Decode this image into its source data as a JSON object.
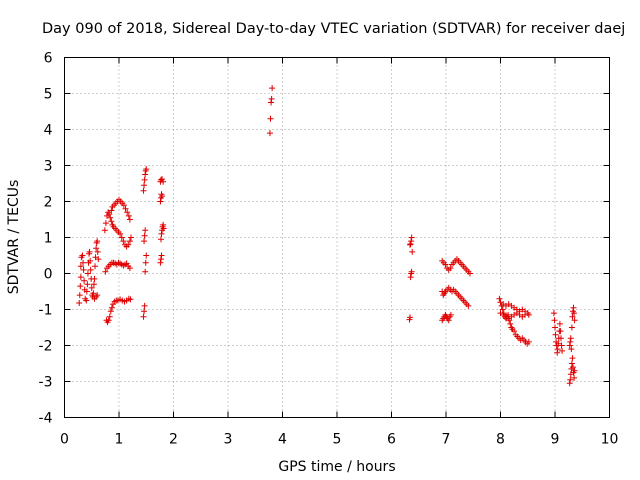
{
  "chart_data": {
    "type": "scatter",
    "title": "Day 090 of 2018, Sidereal Day-to-day VTEC variation (SDTVAR) for receiver daej",
    "xlabel": "GPS time / hours",
    "ylabel": "SDTVAR / TECUs",
    "xlim": [
      0,
      10
    ],
    "ylim": [
      -4,
      6
    ],
    "xticks": [
      "0",
      "1",
      "2",
      "3",
      "4",
      "5",
      "6",
      "7",
      "8",
      "9",
      "10"
    ],
    "yticks": [
      "-4",
      "-3",
      "-2",
      "-1",
      "0",
      "1",
      "2",
      "3",
      "4",
      "5",
      "6"
    ],
    "grid": true,
    "marker": "+",
    "color": "#e00000",
    "series": [
      {
        "name": "SDTVAR",
        "points": [
          [
            0.27,
            -0.82
          ],
          [
            0.28,
            -0.6
          ],
          [
            0.29,
            -0.35
          ],
          [
            0.3,
            -0.1
          ],
          [
            0.3,
            0.2
          ],
          [
            0.31,
            0.45
          ],
          [
            0.33,
            0.5
          ],
          [
            0.34,
            0.3
          ],
          [
            0.35,
            0.1
          ],
          [
            0.36,
            -0.2
          ],
          [
            0.37,
            -0.45
          ],
          [
            0.38,
            -0.7
          ],
          [
            0.4,
            -0.75
          ],
          [
            0.41,
            -0.5
          ],
          [
            0.42,
            -0.3
          ],
          [
            0.43,
            0.0
          ],
          [
            0.44,
            0.3
          ],
          [
            0.45,
            0.55
          ],
          [
            0.46,
            0.6
          ],
          [
            0.47,
            0.35
          ],
          [
            0.48,
            0.1
          ],
          [
            0.49,
            -0.15
          ],
          [
            0.5,
            -0.4
          ],
          [
            0.51,
            -0.6
          ],
          [
            0.52,
            -0.65
          ],
          [
            0.53,
            -0.55
          ],
          [
            0.54,
            -0.3
          ],
          [
            0.55,
            -0.15
          ],
          [
            0.56,
            0.2
          ],
          [
            0.57,
            0.45
          ],
          [
            0.58,
            0.7
          ],
          [
            0.59,
            0.85
          ],
          [
            0.6,
            0.9
          ],
          [
            0.61,
            0.6
          ],
          [
            0.62,
            0.4
          ],
          [
            0.55,
            -0.7
          ],
          [
            0.58,
            -0.65
          ],
          [
            0.6,
            -0.6
          ],
          [
            0.77,
            -1.3
          ],
          [
            0.79,
            -1.35
          ],
          [
            0.81,
            -1.3
          ],
          [
            0.83,
            -1.2
          ],
          [
            0.85,
            -1.05
          ],
          [
            0.87,
            -0.95
          ],
          [
            0.89,
            -0.85
          ],
          [
            0.92,
            -0.78
          ],
          [
            0.95,
            -0.75
          ],
          [
            0.98,
            -0.75
          ],
          [
            1.02,
            -0.72
          ],
          [
            1.06,
            -0.75
          ],
          [
            1.1,
            -0.78
          ],
          [
            1.14,
            -0.75
          ],
          [
            1.18,
            -0.7
          ],
          [
            1.21,
            -0.72
          ],
          [
            0.75,
            0.05
          ],
          [
            0.78,
            0.15
          ],
          [
            0.81,
            0.2
          ],
          [
            0.84,
            0.25
          ],
          [
            0.87,
            0.3
          ],
          [
            0.9,
            0.3
          ],
          [
            0.93,
            0.28
          ],
          [
            0.96,
            0.25
          ],
          [
            0.99,
            0.3
          ],
          [
            1.02,
            0.28
          ],
          [
            1.05,
            0.25
          ],
          [
            1.08,
            0.22
          ],
          [
            1.11,
            0.25
          ],
          [
            1.14,
            0.28
          ],
          [
            1.17,
            0.2
          ],
          [
            1.2,
            0.15
          ],
          [
            0.74,
            1.2
          ],
          [
            0.76,
            1.4
          ],
          [
            0.78,
            1.6
          ],
          [
            0.8,
            1.7
          ],
          [
            0.82,
            1.65
          ],
          [
            0.84,
            1.55
          ],
          [
            0.86,
            1.45
          ],
          [
            0.88,
            1.35
          ],
          [
            0.9,
            1.3
          ],
          [
            0.93,
            1.25
          ],
          [
            0.96,
            1.2
          ],
          [
            0.99,
            1.15
          ],
          [
            1.02,
            1.1
          ],
          [
            1.05,
            1.0
          ],
          [
            1.08,
            0.9
          ],
          [
            1.11,
            0.8
          ],
          [
            1.14,
            0.75
          ],
          [
            1.17,
            0.8
          ],
          [
            1.2,
            0.9
          ],
          [
            1.22,
            1.0
          ],
          [
            0.86,
            1.75
          ],
          [
            0.88,
            1.85
          ],
          [
            0.91,
            1.9
          ],
          [
            0.94,
            1.95
          ],
          [
            0.97,
            2.0
          ],
          [
            1.0,
            2.05
          ],
          [
            1.03,
            2.0
          ],
          [
            1.06,
            1.95
          ],
          [
            1.09,
            1.9
          ],
          [
            1.12,
            1.8
          ],
          [
            1.15,
            1.7
          ],
          [
            1.18,
            1.6
          ],
          [
            1.2,
            1.5
          ],
          [
            1.45,
            -1.2
          ],
          [
            1.46,
            -1.05
          ],
          [
            1.47,
            -0.9
          ],
          [
            1.48,
            0.05
          ],
          [
            1.49,
            0.3
          ],
          [
            1.5,
            0.5
          ],
          [
            1.46,
            0.9
          ],
          [
            1.47,
            1.05
          ],
          [
            1.48,
            1.2
          ],
          [
            1.45,
            2.3
          ],
          [
            1.46,
            2.45
          ],
          [
            1.47,
            2.6
          ],
          [
            1.48,
            2.75
          ],
          [
            1.49,
            2.85
          ],
          [
            1.5,
            2.9
          ],
          [
            1.76,
            0.3
          ],
          [
            1.77,
            0.4
          ],
          [
            1.78,
            0.5
          ],
          [
            1.77,
            0.95
          ],
          [
            1.78,
            1.1
          ],
          [
            1.79,
            1.2
          ],
          [
            1.8,
            1.3
          ],
          [
            1.81,
            1.35
          ],
          [
            1.82,
            1.25
          ],
          [
            1.76,
            2.0
          ],
          [
            1.77,
            2.1
          ],
          [
            1.78,
            2.2
          ],
          [
            1.79,
            2.15
          ],
          [
            1.76,
            2.55
          ],
          [
            1.77,
            2.6
          ],
          [
            1.79,
            2.62
          ],
          [
            1.81,
            2.55
          ],
          [
            3.77,
            3.9
          ],
          [
            3.78,
            4.3
          ],
          [
            3.79,
            4.75
          ],
          [
            3.8,
            4.85
          ],
          [
            3.81,
            5.15
          ],
          [
            6.33,
            -1.28
          ],
          [
            6.34,
            -1.22
          ],
          [
            6.35,
            -0.1
          ],
          [
            6.36,
            0.0
          ],
          [
            6.37,
            0.05
          ],
          [
            6.34,
            0.8
          ],
          [
            6.35,
            0.82
          ],
          [
            6.36,
            0.9
          ],
          [
            6.37,
            1.0
          ],
          [
            6.38,
            0.6
          ],
          [
            6.93,
            -1.3
          ],
          [
            6.95,
            -1.25
          ],
          [
            6.97,
            -1.2
          ],
          [
            6.99,
            -1.15
          ],
          [
            7.01,
            -1.2
          ],
          [
            7.03,
            -1.25
          ],
          [
            7.05,
            -1.3
          ],
          [
            7.07,
            -1.2
          ],
          [
            7.09,
            -1.15
          ],
          [
            6.93,
            -0.5
          ],
          [
            6.95,
            -0.6
          ],
          [
            6.97,
            -0.55
          ],
          [
            6.99,
            -0.5
          ],
          [
            7.02,
            -0.45
          ],
          [
            7.05,
            -0.4
          ],
          [
            7.08,
            -0.45
          ],
          [
            7.11,
            -0.5
          ],
          [
            7.14,
            -0.45
          ],
          [
            7.17,
            -0.5
          ],
          [
            7.2,
            -0.55
          ],
          [
            7.23,
            -0.6
          ],
          [
            7.26,
            -0.65
          ],
          [
            7.29,
            -0.7
          ],
          [
            7.32,
            -0.75
          ],
          [
            7.35,
            -0.8
          ],
          [
            7.38,
            -0.85
          ],
          [
            7.41,
            -0.9
          ],
          [
            6.93,
            0.35
          ],
          [
            6.96,
            0.3
          ],
          [
            6.99,
            0.25
          ],
          [
            7.02,
            0.15
          ],
          [
            7.05,
            0.1
          ],
          [
            7.08,
            0.15
          ],
          [
            7.11,
            0.25
          ],
          [
            7.14,
            0.3
          ],
          [
            7.17,
            0.35
          ],
          [
            7.2,
            0.4
          ],
          [
            7.23,
            0.35
          ],
          [
            7.26,
            0.3
          ],
          [
            7.29,
            0.25
          ],
          [
            7.32,
            0.2
          ],
          [
            7.35,
            0.15
          ],
          [
            7.38,
            0.1
          ],
          [
            7.41,
            0.05
          ],
          [
            7.44,
            0.0
          ],
          [
            7.98,
            -0.7
          ],
          [
            8.0,
            -0.8
          ],
          [
            8.02,
            -0.9
          ],
          [
            8.04,
            -1.0
          ],
          [
            8.06,
            -1.1
          ],
          [
            8.08,
            -1.2
          ],
          [
            8.1,
            -1.25
          ],
          [
            8.12,
            -1.2
          ],
          [
            8.14,
            -1.15
          ],
          [
            8.16,
            -1.3
          ],
          [
            8.18,
            -1.4
          ],
          [
            8.2,
            -1.5
          ],
          [
            8.22,
            -1.55
          ],
          [
            8.25,
            -1.6
          ],
          [
            8.28,
            -1.7
          ],
          [
            8.31,
            -1.75
          ],
          [
            8.34,
            -1.8
          ],
          [
            8.37,
            -1.85
          ],
          [
            8.4,
            -1.8
          ],
          [
            8.43,
            -1.85
          ],
          [
            8.46,
            -1.9
          ],
          [
            8.49,
            -1.95
          ],
          [
            8.52,
            -1.9
          ],
          [
            8.05,
            -0.85
          ],
          [
            8.1,
            -0.9
          ],
          [
            8.15,
            -0.85
          ],
          [
            8.2,
            -0.9
          ],
          [
            8.25,
            -0.95
          ],
          [
            8.3,
            -1.0
          ],
          [
            8.35,
            -1.05
          ],
          [
            8.4,
            -1.0
          ],
          [
            8.45,
            -1.05
          ],
          [
            8.5,
            -1.1
          ],
          [
            8.52,
            -1.15
          ],
          [
            8.0,
            -1.1
          ],
          [
            8.05,
            -1.15
          ],
          [
            8.1,
            -1.2
          ],
          [
            8.15,
            -1.25
          ],
          [
            8.2,
            -1.2
          ],
          [
            8.25,
            -1.15
          ],
          [
            8.3,
            -1.1
          ],
          [
            8.35,
            -1.15
          ],
          [
            8.4,
            -1.2
          ],
          [
            8.45,
            -1.15
          ],
          [
            8.98,
            -1.1
          ],
          [
            8.99,
            -1.3
          ],
          [
            9.0,
            -1.5
          ],
          [
            9.01,
            -1.7
          ],
          [
            9.02,
            -1.9
          ],
          [
            9.03,
            -2.0
          ],
          [
            9.04,
            -2.2
          ],
          [
            9.05,
            -2.1
          ],
          [
            9.06,
            -1.95
          ],
          [
            9.07,
            -1.8
          ],
          [
            9.08,
            -1.6
          ],
          [
            9.09,
            -1.4
          ],
          [
            9.1,
            -1.6
          ],
          [
            9.11,
            -1.8
          ],
          [
            9.12,
            -2.0
          ],
          [
            9.13,
            -2.15
          ],
          [
            9.27,
            -3.05
          ],
          [
            9.28,
            -2.95
          ],
          [
            9.29,
            -2.8
          ],
          [
            9.3,
            -2.65
          ],
          [
            9.31,
            -2.5
          ],
          [
            9.32,
            -2.35
          ],
          [
            9.33,
            -2.6
          ],
          [
            9.34,
            -2.75
          ],
          [
            9.35,
            -2.9
          ],
          [
            9.36,
            -2.7
          ],
          [
            9.27,
            -2.0
          ],
          [
            9.28,
            -1.9
          ],
          [
            9.29,
            -1.8
          ],
          [
            9.3,
            -2.1
          ],
          [
            9.31,
            -1.5
          ],
          [
            9.32,
            -1.2
          ],
          [
            9.33,
            -1.05
          ],
          [
            9.34,
            -0.95
          ],
          [
            9.35,
            -1.1
          ],
          [
            9.36,
            -1.3
          ]
        ]
      }
    ]
  }
}
